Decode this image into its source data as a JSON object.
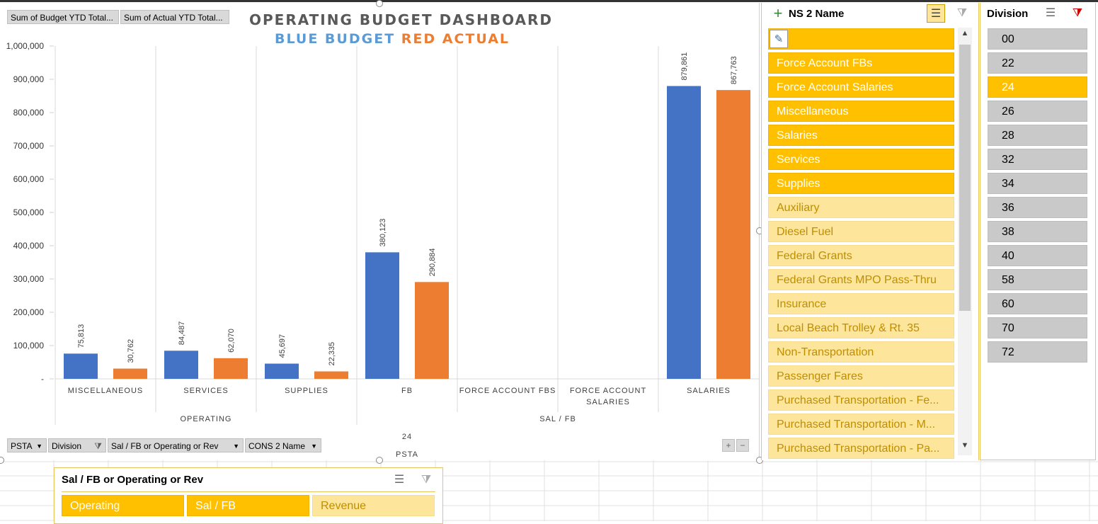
{
  "pivot_fields_top": [
    "Sum of Budget YTD Total...",
    "Sum of Actual YTD Total..."
  ],
  "pivot_fields_bottom": [
    "PSTA",
    "Division",
    "Sal / FB or Operating or Rev",
    "CONS 2 Name"
  ],
  "chart_title": "OPERATING BUDGET DASHBOARD",
  "chart_subtitle_blue": "BLUE BUDGET",
  "chart_subtitle_red": "RED ACTUAL",
  "colors": {
    "budget": "#4472c4",
    "actual": "#ed7d31",
    "slicer_selected": "#ffc000",
    "slicer_unselected": "#fde59b"
  },
  "chart_data": {
    "type": "bar",
    "categories": [
      "MISCELLANEOUS",
      "SERVICES",
      "SUPPLIES",
      "FB",
      "FORCE ACCOUNT FBS",
      "FORCE ACCOUNT SALARIES",
      "SALARIES"
    ],
    "groups": [
      {
        "label": "OPERATING",
        "categories": [
          "MISCELLANEOUS",
          "SERVICES",
          "SUPPLIES"
        ]
      },
      {
        "label": "SAL / FB",
        "categories": [
          "FB",
          "FORCE ACCOUNT FBS",
          "FORCE ACCOUNT SALARIES",
          "SALARIES"
        ]
      }
    ],
    "outer_labels": [
      "24",
      "PSTA"
    ],
    "series": [
      {
        "values": [
          75813,
          84487,
          45697,
          380123,
          null,
          null,
          879861
        ],
        "labels": [
          "75,813",
          "84,487",
          "45,697",
          "380,123",
          "",
          "",
          "879,861"
        ]
      },
      {
        "values": [
          30762,
          62070,
          22335,
          290884,
          null,
          null,
          867763
        ],
        "labels": [
          "30,762",
          "62,070",
          "22,335",
          "290,884",
          "",
          "",
          "867,763"
        ]
      }
    ],
    "y_ticks": [
      "-",
      "100,000",
      "200,000",
      "300,000",
      "400,000",
      "500,000",
      "600,000",
      "700,000",
      "800,000",
      "900,000",
      "1,000,000"
    ],
    "ylim": [
      0,
      1000000
    ],
    "legend": "none",
    "grid": "vertical category separators"
  },
  "cons_slicer": {
    "title": "NS 2 Name",
    "items": [
      {
        "label": "",
        "selected": true
      },
      {
        "label": "Force Account FBs",
        "selected": true
      },
      {
        "label": "Force Account Salaries",
        "selected": true
      },
      {
        "label": "Miscellaneous",
        "selected": true
      },
      {
        "label": "Salaries",
        "selected": true
      },
      {
        "label": "Services",
        "selected": true
      },
      {
        "label": "Supplies",
        "selected": true
      },
      {
        "label": "Auxiliary",
        "selected": false
      },
      {
        "label": "Diesel Fuel",
        "selected": false
      },
      {
        "label": "Federal Grants",
        "selected": false
      },
      {
        "label": "Federal Grants MPO Pass-Thru",
        "selected": false
      },
      {
        "label": "Insurance",
        "selected": false
      },
      {
        "label": "Local Beach Trolley & Rt. 35",
        "selected": false
      },
      {
        "label": "Non-Transportation",
        "selected": false
      },
      {
        "label": "Passenger Fares",
        "selected": false
      },
      {
        "label": "Purchased Transportation - Fe...",
        "selected": false
      },
      {
        "label": "Purchased Transportation - M...",
        "selected": false
      },
      {
        "label": "Purchased Transportation - Pa...",
        "selected": false
      }
    ]
  },
  "division_slicer": {
    "title": "Division",
    "items": [
      {
        "label": "00",
        "selected": false
      },
      {
        "label": "22",
        "selected": false
      },
      {
        "label": "24",
        "selected": true
      },
      {
        "label": "26",
        "selected": false
      },
      {
        "label": "28",
        "selected": false
      },
      {
        "label": "32",
        "selected": false
      },
      {
        "label": "34",
        "selected": false
      },
      {
        "label": "36",
        "selected": false
      },
      {
        "label": "38",
        "selected": false
      },
      {
        "label": "40",
        "selected": false
      },
      {
        "label": "58",
        "selected": false
      },
      {
        "label": "60",
        "selected": false
      },
      {
        "label": "70",
        "selected": false
      },
      {
        "label": "72",
        "selected": false
      }
    ]
  },
  "sal_slicer": {
    "title": "Sal / FB or Operating or Rev",
    "items": [
      {
        "label": "Operating",
        "selected": true
      },
      {
        "label": "Sal / FB",
        "selected": true
      },
      {
        "label": "Revenue",
        "selected": false
      }
    ]
  },
  "zoom_buttons": [
    "+",
    "−"
  ]
}
